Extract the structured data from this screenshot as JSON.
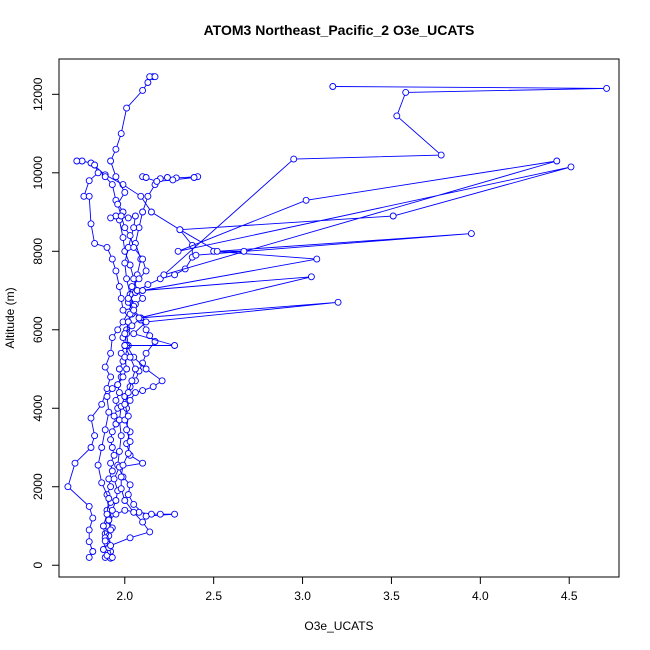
{
  "chart_data": {
    "type": "line",
    "title": "ATOM3 Northeast_Pacific_2 O3e_UCATS",
    "xlabel": "O3e_UCATS",
    "ylabel": "Altitude (m)",
    "xlim": [
      1.63,
      4.78
    ],
    "ylim": [
      -300,
      12900
    ],
    "x_ticks": [
      2.0,
      2.5,
      3.0,
      3.5,
      4.0,
      4.5
    ],
    "x_tick_labels": [
      "2.0",
      "2.5",
      "3.0",
      "3.5",
      "4.0",
      "4.5"
    ],
    "y_ticks": [
      0,
      2000,
      4000,
      6000,
      8000,
      10000,
      12000
    ],
    "y_tick_labels": [
      "0",
      "2000",
      "4000",
      "6000",
      "8000",
      "10000",
      "12000"
    ],
    "series_color": "#0000ff",
    "marker": "open-circle",
    "grid": false,
    "legend": "none",
    "series": [
      {
        "points": [
          [
            1.92,
            180
          ],
          [
            1.89,
            200
          ],
          [
            1.9,
            250
          ],
          [
            1.88,
            400
          ],
          [
            1.9,
            600
          ],
          [
            1.89,
            800
          ],
          [
            1.9,
            1000
          ],
          [
            1.91,
            1200
          ],
          [
            1.9,
            1400
          ],
          [
            1.92,
            1600
          ],
          [
            1.9,
            1800
          ],
          [
            1.92,
            2000
          ],
          [
            1.91,
            2200
          ],
          [
            1.93,
            2400
          ],
          [
            1.92,
            2600
          ],
          [
            1.94,
            2800
          ],
          [
            1.93,
            3000
          ],
          [
            1.92,
            3200
          ],
          [
            1.93,
            3400
          ],
          [
            1.95,
            3600
          ],
          [
            1.94,
            3800
          ],
          [
            1.96,
            4000
          ],
          [
            1.95,
            4200
          ],
          [
            1.97,
            4400
          ],
          [
            1.96,
            4600
          ],
          [
            1.98,
            4800
          ],
          [
            1.97,
            5000
          ],
          [
            1.99,
            5200
          ],
          [
            1.98,
            5400
          ],
          [
            2.0,
            5600
          ],
          [
            1.99,
            5800
          ],
          [
            2.01,
            6000
          ],
          [
            2.02,
            6200
          ],
          [
            2.04,
            6400
          ],
          [
            2.03,
            6700
          ],
          [
            2.05,
            7000
          ],
          [
            2.07,
            7400
          ],
          [
            2.09,
            7800
          ],
          [
            2.06,
            8200
          ],
          [
            2.08,
            8600
          ],
          [
            2.1,
            9000
          ],
          [
            2.13,
            9400
          ],
          [
            2.17,
            9700
          ],
          [
            2.2,
            9850
          ],
          [
            2.24,
            9880
          ],
          [
            2.29,
            9870
          ],
          [
            2.41,
            9900
          ],
          [
            2.39,
            9880
          ],
          [
            2.27,
            9820
          ],
          [
            2.18,
            9780
          ],
          [
            2.1,
            9900
          ],
          [
            2.12,
            9880
          ]
        ]
      },
      {
        "points": [
          [
            1.92,
            350
          ],
          [
            1.9,
            550
          ],
          [
            1.91,
            750
          ],
          [
            1.93,
            950
          ],
          [
            1.91,
            1150
          ],
          [
            1.95,
            1300
          ],
          [
            2.0,
            1400
          ],
          [
            2.08,
            1350
          ],
          [
            2.15,
            1300
          ],
          [
            2.2,
            1300
          ],
          [
            2.28,
            1300
          ],
          [
            2.12,
            1250
          ],
          [
            2.05,
            1550
          ],
          [
            2.02,
            1800
          ],
          [
            2.03,
            2050
          ],
          [
            1.99,
            2250
          ],
          [
            1.96,
            2550
          ],
          [
            1.97,
            2900
          ],
          [
            1.98,
            3300
          ],
          [
            1.97,
            3700
          ],
          [
            1.98,
            4050
          ],
          [
            2.0,
            4300
          ],
          [
            2.03,
            4550
          ],
          [
            2.06,
            4700
          ],
          [
            2.08,
            4950
          ],
          [
            2.1,
            5150
          ],
          [
            2.12,
            5400
          ],
          [
            2.17,
            5700
          ],
          [
            2.14,
            5850
          ],
          [
            2.12,
            6000
          ],
          [
            2.09,
            6250
          ],
          [
            2.04,
            6500
          ],
          [
            2.02,
            6700
          ],
          [
            2.06,
            6950
          ],
          [
            2.13,
            7150
          ],
          [
            2.2,
            7300
          ],
          [
            2.28,
            7400
          ],
          [
            2.34,
            7550
          ],
          [
            2.38,
            7850
          ],
          [
            2.38,
            8150
          ],
          [
            2.31,
            8550
          ],
          [
            2.15,
            9000
          ],
          [
            2.09,
            9400
          ],
          [
            1.99,
            9700
          ],
          [
            1.89,
            9950
          ],
          [
            1.81,
            10250
          ],
          [
            1.76,
            10300
          ],
          [
            1.73,
            10300
          ]
        ]
      },
      {
        "points": [
          [
            1.8,
            200
          ],
          [
            1.82,
            350
          ],
          [
            1.8,
            600
          ],
          [
            1.8,
            900
          ],
          [
            1.82,
            1200
          ],
          [
            1.8,
            1500
          ],
          [
            1.68,
            2000
          ],
          [
            1.72,
            2600
          ],
          [
            1.81,
            3000
          ],
          [
            1.83,
            3300
          ],
          [
            1.81,
            3750
          ],
          [
            1.87,
            4100
          ],
          [
            1.9,
            4500
          ],
          [
            1.92,
            4800
          ],
          [
            1.89,
            5050
          ],
          [
            1.92,
            5400
          ],
          [
            1.93,
            5800
          ],
          [
            1.96,
            6000
          ],
          [
            1.99,
            6200
          ],
          [
            2.02,
            6450
          ],
          [
            2.06,
            6650
          ],
          [
            2.1,
            6800
          ],
          [
            2.07,
            7000
          ],
          [
            2.05,
            7300
          ],
          [
            2.03,
            7650
          ],
          [
            2.0,
            8000
          ],
          [
            1.99,
            8350
          ],
          [
            1.97,
            8800
          ],
          [
            1.99,
            9000
          ],
          [
            1.95,
            9300
          ],
          [
            1.93,
            9700
          ],
          [
            1.89,
            9900
          ],
          [
            1.83,
            10200
          ],
          [
            1.85,
            10000
          ],
          [
            1.8,
            9800
          ],
          [
            1.77,
            9400
          ],
          [
            1.8,
            9400
          ],
          [
            1.81,
            8700
          ],
          [
            1.83,
            8200
          ],
          [
            1.9,
            8100
          ],
          [
            1.93,
            7800
          ],
          [
            1.95,
            7500
          ],
          [
            1.97,
            7100
          ],
          [
            1.98,
            6800
          ],
          [
            1.99,
            6500
          ]
        ]
      },
      {
        "points": [
          [
            1.93,
            200
          ],
          [
            1.91,
            450
          ],
          [
            1.89,
            700
          ],
          [
            1.88,
            1000
          ],
          [
            1.9,
            1300
          ],
          [
            1.91,
            1700
          ],
          [
            1.87,
            2100
          ],
          [
            1.85,
            2550
          ],
          [
            1.87,
            3000
          ],
          [
            1.89,
            3450
          ],
          [
            1.91,
            3900
          ],
          [
            1.9,
            4300
          ],
          [
            1.93,
            4500
          ],
          [
            1.96,
            4600
          ],
          [
            1.99,
            4800
          ],
          [
            2.01,
            5000
          ],
          [
            2.0,
            5300
          ],
          [
            2.02,
            5600
          ],
          [
            2.01,
            5900
          ],
          [
            2.02,
            6200
          ],
          [
            2.03,
            6400
          ],
          [
            2.05,
            6600
          ],
          [
            2.03,
            6900
          ],
          [
            2.01,
            7300
          ],
          [
            2.0,
            7700
          ],
          [
            2.02,
            8100
          ],
          [
            2.05,
            8600
          ],
          [
            2.06,
            8900
          ],
          [
            2.02,
            8850
          ],
          [
            1.95,
            8900
          ],
          [
            1.92,
            8850
          ]
        ]
      },
      {
        "points": [
          [
            1.89,
            620
          ],
          [
            1.92,
            900
          ],
          [
            1.91,
            1150
          ],
          [
            1.93,
            1400
          ],
          [
            1.95,
            1650
          ],
          [
            1.96,
            1900
          ],
          [
            1.94,
            2200
          ],
          [
            1.97,
            2500
          ],
          [
            2.1,
            2600
          ],
          [
            2.03,
            2800
          ],
          [
            2.01,
            3100
          ],
          [
            2.03,
            3400
          ],
          [
            2.0,
            3700
          ],
          [
            2.01,
            4000
          ],
          [
            2.03,
            4200
          ],
          [
            2.06,
            4400
          ],
          [
            2.1,
            4450
          ],
          [
            2.16,
            4550
          ],
          [
            2.21,
            4700
          ],
          [
            2.12,
            5000
          ],
          [
            2.05,
            5300
          ],
          [
            2.01,
            5600
          ],
          [
            2.0,
            5900
          ],
          [
            2.04,
            6100
          ],
          [
            2.09,
            6300
          ],
          [
            2.05,
            6500
          ],
          [
            2.02,
            6800
          ],
          [
            2.04,
            7100
          ],
          [
            2.08,
            7300
          ],
          [
            2.12,
            7500
          ],
          [
            2.1,
            7800
          ],
          [
            2.05,
            8100
          ],
          [
            2.03,
            8400
          ],
          [
            2.0,
            8600
          ],
          [
            1.98,
            8900
          ],
          [
            1.96,
            9200
          ],
          [
            2.0,
            9500
          ],
          [
            1.95,
            9900
          ],
          [
            1.92,
            10300
          ],
          [
            1.95,
            10600
          ],
          [
            1.98,
            11000
          ],
          [
            2.01,
            11650
          ],
          [
            2.1,
            12100
          ],
          [
            2.13,
            12300
          ],
          [
            2.16,
            12450
          ],
          [
            2.14,
            12450
          ],
          [
            2.17,
            12450
          ]
        ]
      },
      {
        "points": [
          [
            1.92,
            500
          ],
          [
            2.03,
            700
          ],
          [
            2.14,
            850
          ],
          [
            2.1,
            1100
          ],
          [
            2.05,
            1350
          ],
          [
            2.0,
            1650
          ],
          [
            1.98,
            1950
          ],
          [
            1.98,
            2250
          ],
          [
            1.99,
            2550
          ],
          [
            2.02,
            2850
          ],
          [
            2.03,
            3150
          ],
          [
            2.01,
            3450
          ],
          [
            2.02,
            3800
          ],
          [
            2.0,
            4100
          ],
          [
            2.02,
            4400
          ],
          [
            2.04,
            4700
          ],
          [
            2.06,
            5000
          ],
          [
            2.03,
            5300
          ],
          [
            2.0,
            5600
          ],
          [
            2.28,
            5600
          ],
          [
            2.05,
            5900
          ],
          [
            2.12,
            6200
          ],
          [
            3.2,
            6700
          ],
          [
            2.08,
            6300
          ],
          [
            3.05,
            7350
          ],
          [
            2.1,
            7000
          ],
          [
            3.08,
            7800
          ],
          [
            2.5,
            8000
          ],
          [
            2.67,
            8000
          ],
          [
            2.4,
            7900
          ],
          [
            3.95,
            8450
          ],
          [
            2.52,
            8000
          ],
          [
            2.31,
            8550
          ],
          [
            3.51,
            8900
          ],
          [
            4.51,
            10150
          ],
          [
            2.3,
            8000
          ],
          [
            3.02,
            9300
          ],
          [
            4.43,
            10300
          ],
          [
            2.22,
            7400
          ],
          [
            2.95,
            10350
          ],
          [
            3.78,
            10450
          ],
          [
            3.53,
            11450
          ],
          [
            3.58,
            12050
          ],
          [
            4.71,
            12150
          ],
          [
            3.17,
            12200
          ]
        ]
      }
    ]
  }
}
